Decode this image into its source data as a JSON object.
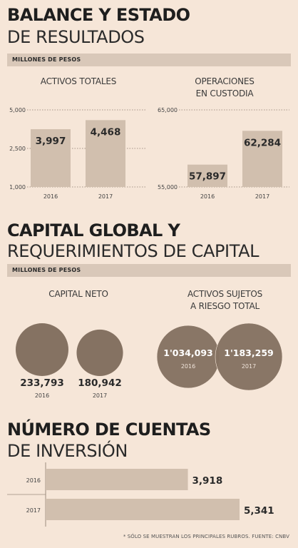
{
  "sections": {
    "balance": {
      "title_bold": "BALANCE Y ESTADO",
      "title_light": "DE RESULTADOS",
      "band": "MILLONES DE PESOS"
    },
    "capital": {
      "title_bold": "CAPITAL GLOBAL Y",
      "title_light": "REQUERIMIENTOS DE CAPITAL",
      "band": "MILLONES DE PESOS"
    },
    "cuentas": {
      "title_bold": "NÚMERO DE CUENTAS",
      "title_light": "DE INVERSIÓN"
    }
  },
  "footnote": "* SÓLO SE MUESTRAN LOS PRINCIPALES RUBROS. FUENTE: CNBV",
  "colors": {
    "background": "#f6e6d8",
    "band": "#d9c8b9",
    "bar": "#d1bfae",
    "circle": "#857262",
    "text": "#1e1e1e"
  },
  "chart_data": [
    {
      "type": "bar",
      "title": "ACTIVOS TOTALES",
      "categories": [
        "2016",
        "2017"
      ],
      "values": [
        3997,
        4468
      ],
      "value_labels": [
        "3,997",
        "4,468"
      ],
      "y_ticks": [
        "5,000",
        "2,500",
        "1,000"
      ],
      "ylim": [
        1000,
        5000
      ],
      "grid": "dotted"
    },
    {
      "type": "bar",
      "title": "OPERACIONES EN CUSTODIA",
      "title_lines": [
        "OPERACIONES",
        "EN CUSTODIA"
      ],
      "categories": [
        "2016",
        "2017"
      ],
      "values": [
        57897,
        62284
      ],
      "value_labels": [
        "57,897",
        "62,284"
      ],
      "y_ticks": [
        "65,000",
        "55,000"
      ],
      "ylim": [
        55000,
        65000
      ],
      "grid": "dotted"
    },
    {
      "type": "bubble",
      "title": "CAPITAL NETO",
      "categories": [
        "2016",
        "2017"
      ],
      "values": [
        233793,
        180942
      ],
      "value_labels": [
        "233,793",
        "180,942"
      ]
    },
    {
      "type": "bubble",
      "title": "ACTIVOS SUJETOS A RIESGO TOTAL",
      "title_lines": [
        "ACTIVOS SUJETOS",
        "A RIESGO TOTAL"
      ],
      "categories": [
        "2016",
        "2017"
      ],
      "values": [
        1034093,
        1183259
      ],
      "value_labels": [
        "1'034,093",
        "1'183,259"
      ]
    },
    {
      "type": "bar",
      "orientation": "horizontal",
      "title": "NÚMERO DE CUENTAS DE INVERSIÓN",
      "categories": [
        "2016",
        "2017"
      ],
      "values": [
        3918,
        5341
      ],
      "value_labels": [
        "3,918",
        "5,341"
      ],
      "xlim": [
        0,
        5341
      ]
    }
  ]
}
